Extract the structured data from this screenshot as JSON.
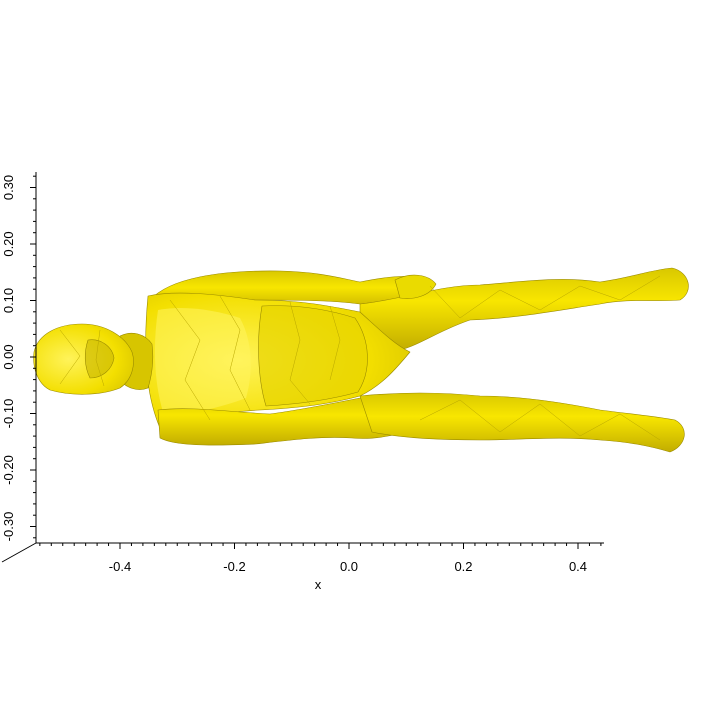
{
  "scene": {
    "mesh_color": "#f5e400",
    "mesh_shadow": "#b9a800",
    "mesh_highlight": "#fff25a",
    "axis_color": "#000000"
  },
  "x_axis": {
    "label": "x",
    "ticks": [
      "-0.4",
      "-0.2",
      "0.0",
      "0.2",
      "0.4"
    ],
    "tick_values": [
      -0.4,
      -0.2,
      0.0,
      0.2,
      0.4
    ],
    "range": [
      -0.55,
      0.44
    ]
  },
  "y_axis": {
    "ticks": [
      "0.30",
      "0.20",
      "0.10",
      "0.00",
      "-0.10",
      "-0.20",
      "-0.30"
    ],
    "tick_values": [
      0.3,
      0.2,
      0.1,
      0.0,
      -0.1,
      -0.2,
      -0.3
    ],
    "range": [
      -0.33,
      0.33
    ]
  }
}
